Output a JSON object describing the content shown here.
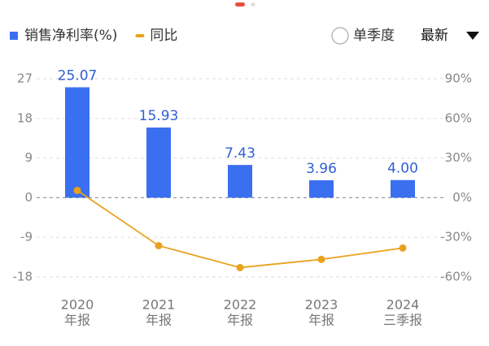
{
  "chart_data": {
    "type": "bar-line",
    "categories": [
      [
        "2020",
        "年报"
      ],
      [
        "2021",
        "年报"
      ],
      [
        "2022",
        "年报"
      ],
      [
        "2023",
        "年报"
      ],
      [
        "2024",
        "三季报"
      ]
    ],
    "series": [
      {
        "name": "销售净利率(%)",
        "type": "bar",
        "color": "#3a6ff0",
        "values": [
          25.07,
          15.93,
          7.43,
          3.96,
          4.0
        ],
        "value_labels": [
          "25.07",
          "15.93",
          "7.43",
          "3.96",
          "4.00"
        ]
      },
      {
        "name": "同比",
        "type": "line",
        "axis": "y2",
        "color": "#e8a21c",
        "values": [
          5.5,
          -36.3,
          -52.9,
          -46.7,
          -38.1
        ]
      }
    ],
    "ylim": [
      -18,
      27
    ],
    "yticks": [
      27,
      18,
      9,
      0,
      -9,
      -18
    ],
    "y2lim": [
      -60,
      90
    ],
    "y2ticks": [
      {
        "value": 90,
        "label": "90%"
      },
      {
        "value": 60,
        "label": "60%"
      },
      {
        "value": 30,
        "label": "30%"
      },
      {
        "value": 0,
        "label": "0%"
      },
      {
        "value": -30,
        "label": "-30%"
      },
      {
        "value": -60,
        "label": "-60%"
      }
    ],
    "grid": true
  },
  "controls": {
    "quarter_toggle": "单季度",
    "sort": "最新"
  }
}
